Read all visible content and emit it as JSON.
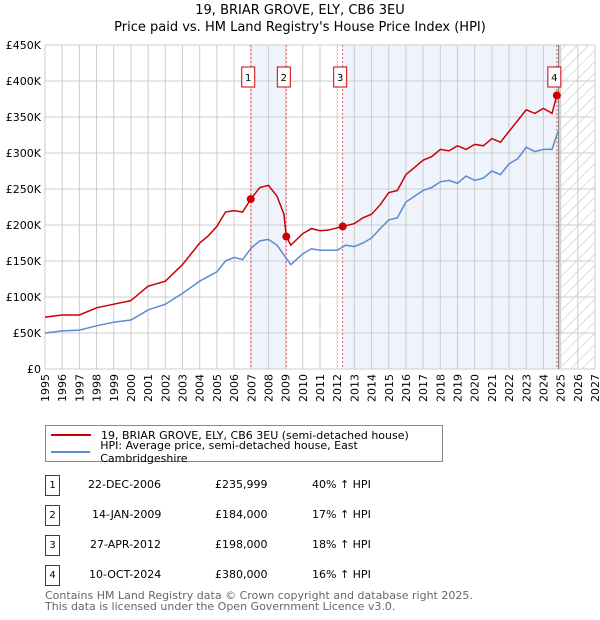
{
  "title": "19, BRIAR GROVE, ELY, CB6 3EU",
  "subtitle": "Price paid vs. HM Land Registry's House Price Index (HPI)",
  "chart_data": {
    "type": "line",
    "title": "19, BRIAR GROVE, ELY, CB6 3EU",
    "subtitle": "Price paid vs. HM Land Registry's House Price Index (HPI)",
    "xlim": [
      1995,
      2027
    ],
    "ylim": [
      0,
      450000
    ],
    "y_ticks": [
      "£0",
      "£50K",
      "£100K",
      "£150K",
      "£200K",
      "£250K",
      "£300K",
      "£350K",
      "£400K",
      "£450K"
    ],
    "x_ticks": [
      "1995",
      "1996",
      "1997",
      "1998",
      "1999",
      "2000",
      "2001",
      "2002",
      "2003",
      "2004",
      "2005",
      "2006",
      "2007",
      "2008",
      "2009",
      "2010",
      "2011",
      "2012",
      "2013",
      "2014",
      "2015",
      "2016",
      "2017",
      "2018",
      "2019",
      "2020",
      "2021",
      "2022",
      "2023",
      "2024",
      "2025",
      "2026",
      "2027"
    ],
    "grid": true,
    "series": [
      {
        "name": "19, BRIAR GROVE, ELY, CB6 3EU (semi-detached house)",
        "color": "#cc0000",
        "x": [
          1995,
          1996,
          1997,
          1998,
          1999,
          2000,
          2001,
          2002,
          2003,
          2004,
          2004.5,
          2005,
          2005.5,
          2006,
          2006.5,
          2006.97,
          2007.5,
          2008,
          2008.5,
          2008.9,
          2009.04,
          2009.3,
          2010,
          2010.5,
          2011,
          2011.5,
          2012.32,
          2013,
          2013.5,
          2014,
          2014.5,
          2015,
          2015.5,
          2016,
          2016.5,
          2017,
          2017.5,
          2018,
          2018.5,
          2019,
          2019.5,
          2020,
          2020.5,
          2021,
          2021.5,
          2022,
          2022.5,
          2023,
          2023.5,
          2024,
          2024.5,
          2024.78
        ],
        "y": [
          72000,
          75000,
          75000,
          85000,
          90000,
          95000,
          115000,
          122000,
          145000,
          175000,
          185000,
          198000,
          218000,
          220000,
          218000,
          235999,
          252000,
          255000,
          240000,
          215000,
          184000,
          172000,
          188000,
          195000,
          192000,
          193000,
          198000,
          202000,
          210000,
          215000,
          228000,
          245000,
          248000,
          270000,
          280000,
          290000,
          295000,
          305000,
          303000,
          310000,
          305000,
          312000,
          310000,
          320000,
          315000,
          330000,
          345000,
          360000,
          355000,
          362000,
          355000,
          380000
        ]
      },
      {
        "name": "HPI: Average price, semi-detached house, East Cambridgeshire",
        "color": "#5b8bd0",
        "x": [
          1995,
          1996,
          1997,
          1998,
          1999,
          2000,
          2001,
          2002,
          2003,
          2004,
          2005,
          2005.5,
          2006,
          2006.5,
          2007,
          2007.5,
          2008,
          2008.5,
          2009,
          2009.3,
          2010,
          2010.5,
          2011,
          2012,
          2012.5,
          2013,
          2013.5,
          2014,
          2014.5,
          2015,
          2015.5,
          2016,
          2016.5,
          2017,
          2017.5,
          2018,
          2018.5,
          2019,
          2019.5,
          2020,
          2020.5,
          2021,
          2021.5,
          2022,
          2022.5,
          2023,
          2023.5,
          2024,
          2024.5,
          2024.85
        ],
        "y": [
          50000,
          53000,
          54000,
          60000,
          65000,
          68000,
          82000,
          90000,
          105000,
          122000,
          135000,
          150000,
          155000,
          152000,
          168000,
          178000,
          180000,
          172000,
          155000,
          145000,
          160000,
          167000,
          165000,
          165000,
          172000,
          170000,
          175000,
          182000,
          195000,
          207000,
          210000,
          232000,
          240000,
          248000,
          252000,
          260000,
          262000,
          258000,
          268000,
          262000,
          265000,
          275000,
          270000,
          285000,
          292000,
          308000,
          302000,
          305000,
          305000,
          330000
        ]
      }
    ],
    "sales": [
      {
        "id": "1",
        "x": 2006.97,
        "y": 235999,
        "date": "22-DEC-2006",
        "price": "£235,999",
        "hpi": "40% ↑ HPI"
      },
      {
        "id": "2",
        "x": 2009.04,
        "y": 184000,
        "date": "14-JAN-2009",
        "price": "£184,000",
        "hpi": "17% ↑ HPI"
      },
      {
        "id": "3",
        "x": 2012.32,
        "y": 198000,
        "date": "27-APR-2012",
        "price": "£198,000",
        "hpi": "18% ↑ HPI"
      },
      {
        "id": "4",
        "x": 2024.78,
        "y": 380000,
        "date": "10-OCT-2024",
        "price": "£380,000",
        "hpi": "16% ↑ HPI"
      }
    ],
    "forecast_from": 2025
  },
  "footer": {
    "line1": "Contains HM Land Registry data © Crown copyright and database right 2025.",
    "line2": "This data is licensed under the Open Government Licence v3.0."
  }
}
